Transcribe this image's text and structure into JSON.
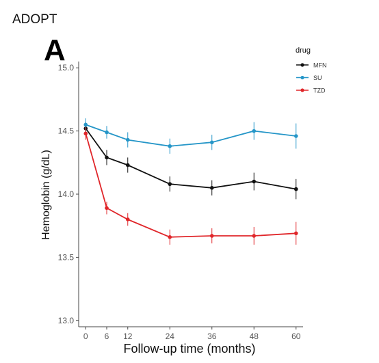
{
  "figure": {
    "header": "ADOPT",
    "panel_label": "A"
  },
  "chart_data": {
    "type": "line",
    "title": "",
    "xlabel": "Follow-up time (months)",
    "ylabel": "Hemoglobin (g/dL)",
    "x": [
      0,
      6,
      12,
      24,
      36,
      48,
      60
    ],
    "x_ticks": [
      "0",
      "6",
      "12",
      "24",
      "36",
      "48",
      "60"
    ],
    "xlim": [
      -2,
      62
    ],
    "ylim": [
      12.95,
      15.05
    ],
    "y_ticks": [
      "13.0",
      "13.5",
      "14.0",
      "14.5",
      "15.0"
    ],
    "y_tick_values": [
      13.0,
      13.5,
      14.0,
      14.5,
      15.0
    ],
    "grid": false,
    "legend": {
      "title": "drug",
      "placement": "top-right"
    },
    "series": [
      {
        "name": "MFN",
        "color": "#111111",
        "values": [
          14.52,
          14.29,
          14.23,
          14.08,
          14.05,
          14.1,
          14.04
        ],
        "err": [
          0.05,
          0.06,
          0.06,
          0.06,
          0.06,
          0.07,
          0.08
        ]
      },
      {
        "name": "SU",
        "color": "#2596c8",
        "values": [
          14.55,
          14.49,
          14.43,
          14.38,
          14.41,
          14.5,
          14.46
        ],
        "err": [
          0.05,
          0.05,
          0.06,
          0.06,
          0.06,
          0.07,
          0.1
        ]
      },
      {
        "name": "TZD",
        "color": "#e0262a",
        "values": [
          14.48,
          13.89,
          13.8,
          13.66,
          13.67,
          13.67,
          13.69
        ],
        "err": [
          0.05,
          0.05,
          0.05,
          0.06,
          0.06,
          0.07,
          0.09
        ]
      }
    ]
  }
}
